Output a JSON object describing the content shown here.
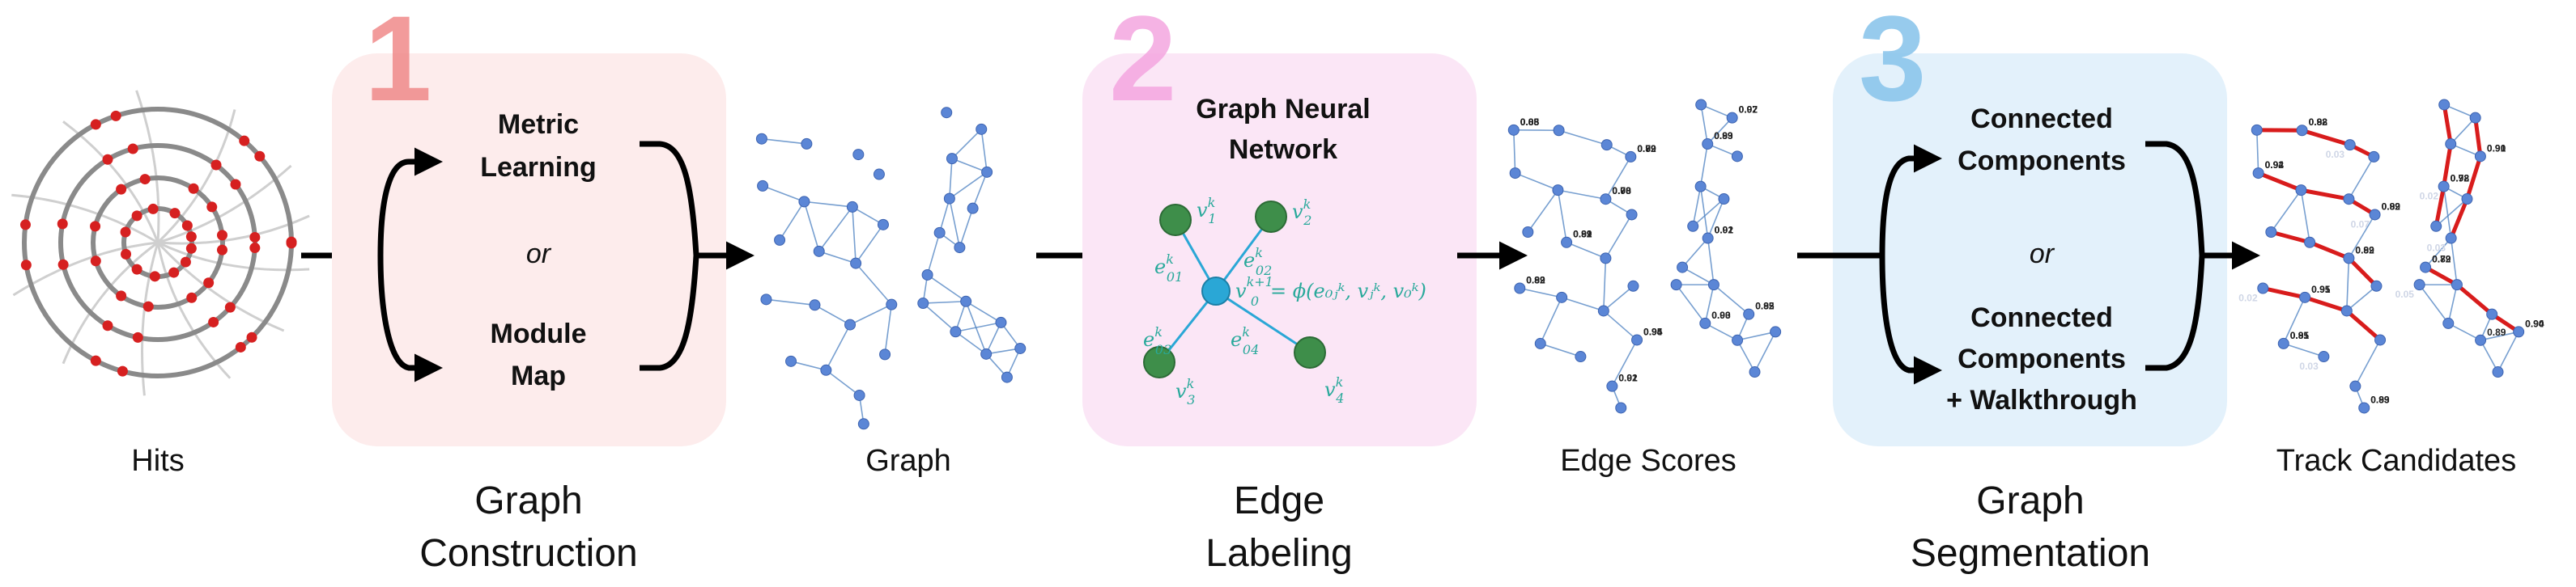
{
  "colors": {
    "stage1_box": "#fdecec",
    "stage2_box": "#fbe6f6",
    "stage3_box": "#e3f1fb",
    "stage1_number": "#f08a8a",
    "stage2_number": "#f4a6e0",
    "stage3_number": "#8cc6ec",
    "hits_red": "#d62020",
    "node_blue": "#5b86d6",
    "edge_blue": "#4a7fc0",
    "gnn_green": "#3e8e4a",
    "gnn_center": "#2aa7d6",
    "math_teal": "#29a99b",
    "track_red": "#d81c1c"
  },
  "stages": [
    {
      "number": "1",
      "title_line1": "Graph",
      "title_line2": "Construction",
      "options": {
        "top_line1": "Metric",
        "top_line2": "Learning",
        "or": "or",
        "bottom_line1": "Module",
        "bottom_line2": "Map"
      }
    },
    {
      "number": "2",
      "title_line1": "Edge",
      "title_line2": "Labeling",
      "heading_line1": "Graph Neural",
      "heading_line2": "Network",
      "equation": "= ϕ(e₀ⱼᵏ, vⱼᵏ, v₀ᵏ)"
    },
    {
      "number": "3",
      "title_line1": "Graph",
      "title_line2": "Segmentation",
      "options": {
        "top_line1": "Connected",
        "top_line2": "Components",
        "or": "or",
        "bottom_line1": "Connected",
        "bottom_line2": "Components",
        "bottom_line3": "+ Walkthrough"
      }
    }
  ],
  "captions": {
    "hits": "Hits",
    "graph": "Graph",
    "edge_scores": "Edge Scores",
    "track_candidates": "Track Candidates"
  },
  "gnn_nodes": {
    "v1": "v",
    "v2": "v",
    "v3": "v",
    "v4": "v",
    "v0": "v",
    "e01": "e",
    "e02": "e",
    "e03": "e",
    "e04": "e",
    "sup_k": "k",
    "sup_k1": "k+1",
    "sub1": "1",
    "sub2": "2",
    "sub3": "3",
    "sub4": "4",
    "sub0": "0",
    "sub01": "01",
    "sub02": "02",
    "sub03": "03",
    "sub04": "04"
  },
  "edge_scores": [
    "0.88",
    "0.92",
    "0.03",
    "0.92",
    "0.89",
    "0.95",
    "0.91",
    "0.93",
    "0.07",
    "0.02",
    "0.92",
    "0.90",
    "0.03",
    "0.79",
    "0.90",
    "0.89",
    "0.92",
    "0.94",
    "0.02",
    "0.89",
    "0.92",
    "0.91",
    "0.85",
    "0.03",
    "0.05",
    "0.89",
    "0.78",
    "0.91",
    "0.82",
    "0.94"
  ],
  "track_scores": [
    "0.88",
    "0.92",
    "0.92",
    "0.89",
    "0.95",
    "0.91",
    "0.93",
    "0.92",
    "0.90",
    "0.79",
    "0.90",
    "0.89",
    "0.92",
    "0.94",
    "0.89",
    "0.92",
    "0.91",
    "0.85",
    "0.89",
    "0.78",
    "0.91",
    "0.82",
    "0.94"
  ],
  "faded_scores": [
    "0.03",
    "0.07",
    "0.02",
    "0.03",
    "0.02",
    "0.03",
    "0.05"
  ]
}
